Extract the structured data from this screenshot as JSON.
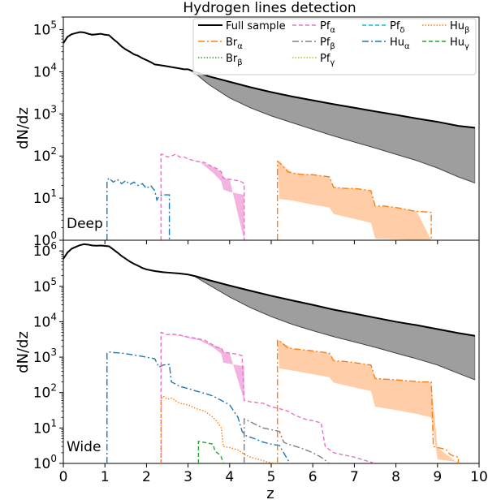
{
  "title": "Hydrogen lines detection",
  "xlabel": "z",
  "ylabel": "dN/dz",
  "x_ticks": [
    0,
    1,
    2,
    3,
    4,
    5,
    6,
    7,
    8,
    9,
    10
  ],
  "legend": [
    {
      "key": "full",
      "label": "Full sample",
      "sub": "",
      "color": "#000000",
      "dash": "",
      "width": 2
    },
    {
      "key": "bra",
      "label": "Br",
      "sub": "α",
      "color": "#ff7f0e",
      "dash": "8,3,2,3",
      "width": 1.4
    },
    {
      "key": "brb",
      "label": "Br",
      "sub": "β",
      "color": "#2ca02c",
      "dash": "1.5,2",
      "width": 1.4
    },
    {
      "key": "pfa",
      "label": "Pf",
      "sub": "α",
      "color": "#e377c2",
      "dash": "5,3",
      "width": 1.4
    },
    {
      "key": "pfb",
      "label": "Pf",
      "sub": "β",
      "color": "#7f7f7f",
      "dash": "8,3,2,3",
      "width": 1.4
    },
    {
      "key": "pfg",
      "label": "Pf",
      "sub": "γ",
      "color": "#bcbd22",
      "dash": "1.5,2",
      "width": 1.4
    },
    {
      "key": "pfd",
      "label": "Pf",
      "sub": "δ",
      "color": "#17becf",
      "dash": "5,3",
      "width": 1.4
    },
    {
      "key": "hua",
      "label": "Hu",
      "sub": "α",
      "color": "#1f77b4",
      "dash": "8,3,2,3",
      "width": 1.4
    },
    {
      "key": "hub",
      "label": "Hu",
      "sub": "β",
      "color": "#ff7f0e",
      "dash": "1.5,2",
      "width": 1.4
    },
    {
      "key": "hug",
      "label": "Hu",
      "sub": "γ",
      "color": "#2ca02c",
      "dash": "5,3",
      "width": 1.4
    }
  ],
  "chart_data": [
    {
      "type": "line",
      "panel_label": "Deep",
      "yscale": "log",
      "ylim": [
        1,
        200000
      ],
      "xlim": [
        0,
        10
      ],
      "y_ticks": [
        {
          "value": 1,
          "exp": "0"
        },
        {
          "value": 10,
          "exp": "1"
        },
        {
          "value": 100,
          "exp": "2"
        },
        {
          "value": 1000,
          "exp": "3"
        },
        {
          "value": 10000,
          "exp": "4"
        },
        {
          "value": 100000,
          "exp": "5"
        }
      ],
      "series": [
        {
          "key": "full",
          "x": [
            0,
            0.1,
            0.2,
            0.3,
            0.4,
            0.5,
            0.6,
            0.7,
            0.8,
            0.9,
            1.0,
            1.1,
            1.2,
            1.3,
            1.4,
            1.5,
            1.6,
            1.7,
            1.8,
            1.9,
            2.0,
            2.1,
            2.2,
            2.3,
            2.4,
            2.5,
            2.6,
            2.7,
            2.8,
            2.9,
            3.0,
            3.1,
            3.5,
            4.0,
            4.5,
            5.0,
            5.5,
            6.0,
            6.5,
            7.0,
            7.5,
            8.0,
            8.5,
            9.0,
            9.5,
            9.9
          ],
          "y": [
            48000,
            68000,
            78000,
            83000,
            88000,
            86000,
            80000,
            76000,
            78000,
            80000,
            76000,
            74000,
            60000,
            50000,
            40000,
            34000,
            30000,
            26000,
            24000,
            21000,
            19000,
            17000,
            15000,
            14500,
            14000,
            13500,
            13000,
            12500,
            12000,
            11500,
            11500,
            10500,
            7800,
            5800,
            4300,
            3300,
            2600,
            2100,
            1700,
            1400,
            1150,
            950,
            780,
            650,
            520,
            470
          ]
        },
        {
          "key": "hua",
          "x": [
            1.05,
            1.05,
            1.1,
            1.2,
            1.3,
            1.4,
            1.5,
            1.6,
            1.7,
            1.8,
            1.9,
            2.0,
            2.1,
            2.2,
            2.25,
            2.3,
            2.4,
            2.5,
            2.55,
            2.55
          ],
          "y": [
            1,
            26,
            30,
            24,
            28,
            22,
            26,
            21,
            24,
            20,
            22,
            17,
            20,
            15,
            9,
            11,
            12,
            12,
            12,
            1
          ]
        },
        {
          "key": "pfa",
          "x": [
            2.35,
            2.35,
            2.4,
            2.5,
            2.6,
            2.7,
            2.8,
            2.9,
            3.0,
            3.2,
            3.4,
            3.6,
            3.7,
            3.8,
            3.85,
            4.0,
            4.2,
            4.3,
            4.35,
            4.35
          ],
          "y": [
            1,
            110,
            108,
            95,
            100,
            110,
            95,
            95,
            85,
            75,
            70,
            55,
            50,
            42,
            30,
            28,
            26,
            24,
            22,
            1
          ]
        },
        {
          "key": "bra",
          "x": [
            5.15,
            5.15,
            5.2,
            5.4,
            5.6,
            5.8,
            6.0,
            6.2,
            6.4,
            6.5,
            6.8,
            7.0,
            7.2,
            7.4,
            7.5,
            7.7,
            8.0,
            8.2,
            8.4,
            8.6,
            8.85,
            8.85
          ],
          "y": [
            1,
            75,
            70,
            42,
            38,
            36,
            36,
            34,
            32,
            18,
            17,
            17,
            16,
            15,
            6.5,
            6.5,
            6,
            5.5,
            5,
            4.8,
            4.6,
            1
          ]
        }
      ],
      "bands": [
        {
          "key": "full",
          "color": "#9e9e9e",
          "x": [
            3.1,
            3.5,
            4.0,
            4.5,
            5.0,
            5.5,
            6.0,
            6.5,
            7.0,
            7.5,
            8.0,
            8.5,
            9.0,
            9.5,
            9.9
          ],
          "lower": [
            10500,
            5000,
            2400,
            1400,
            900,
            620,
            430,
            300,
            215,
            155,
            110,
            78,
            52,
            32,
            23
          ]
        },
        {
          "key": "pfa",
          "color": "#f0a6dc",
          "x": [
            2.35,
            2.5,
            2.8,
            3.0,
            3.3,
            3.6,
            3.8,
            3.85,
            4.0,
            4.35
          ],
          "lower": [
            110,
            95,
            95,
            85,
            70,
            40,
            25,
            16,
            14,
            12
          ]
        },
        {
          "key": "bra",
          "color": "#ffc699",
          "x": [
            5.15,
            5.2,
            5.5,
            6.0,
            6.2,
            6.4,
            6.5,
            7.0,
            7.4,
            7.5,
            8.0,
            8.5,
            8.85
          ],
          "lower": [
            75,
            9.5,
            8.8,
            7,
            6.5,
            6,
            4.2,
            3.2,
            2.6,
            1.1,
            1.05,
            1,
            1
          ]
        }
      ]
    },
    {
      "type": "line",
      "panel_label": "Wide",
      "yscale": "log",
      "ylim": [
        1,
        2000000
      ],
      "xlim": [
        0,
        10
      ],
      "y_ticks": [
        {
          "value": 1,
          "exp": "0"
        },
        {
          "value": 10,
          "exp": "1"
        },
        {
          "value": 100,
          "exp": "2"
        },
        {
          "value": 1000,
          "exp": "3"
        },
        {
          "value": 10000,
          "exp": "4"
        },
        {
          "value": 100000,
          "exp": "5"
        },
        {
          "value": 1000000,
          "exp": "6"
        }
      ],
      "series": [
        {
          "key": "full",
          "x": [
            0,
            0.1,
            0.2,
            0.3,
            0.4,
            0.5,
            0.6,
            0.7,
            0.8,
            0.9,
            1.0,
            1.1,
            1.2,
            1.3,
            1.4,
            1.5,
            1.6,
            1.7,
            1.8,
            1.9,
            2.0,
            2.2,
            2.4,
            2.6,
            2.8,
            3.0,
            3.2,
            3.5,
            4.0,
            4.5,
            5.0,
            5.5,
            6.0,
            6.5,
            7.0,
            7.5,
            8.0,
            8.5,
            9.0,
            9.5,
            9.9
          ],
          "y": [
            600000,
            900000,
            1150000,
            1300000,
            1450000,
            1550000,
            1500000,
            1420000,
            1400000,
            1420000,
            1380000,
            1350000,
            1100000,
            900000,
            720000,
            600000,
            500000,
            430000,
            380000,
            330000,
            300000,
            270000,
            250000,
            240000,
            230000,
            215000,
            190000,
            150000,
            105000,
            75000,
            54000,
            40000,
            30000,
            22000,
            17000,
            13000,
            10000,
            8000,
            6200,
            4800,
            4000
          ]
        },
        {
          "key": "hua",
          "x": [
            1.05,
            1.05,
            1.1,
            1.2,
            1.4,
            1.6,
            1.8,
            2.0,
            2.2,
            2.3,
            2.4,
            2.5,
            2.55,
            2.6,
            2.8,
            3.0,
            3.2,
            3.4,
            3.6,
            3.8,
            4.0,
            4.2,
            4.3,
            4.4,
            4.6,
            4.8,
            5.0,
            5.2,
            5.3,
            5.45
          ],
          "y": [
            1,
            1300,
            1400,
            1350,
            1300,
            1200,
            1100,
            1000,
            900,
            520,
            600,
            620,
            620,
            200,
            150,
            130,
            110,
            95,
            80,
            60,
            45,
            20,
            8,
            6,
            5,
            4,
            3.5,
            3.2,
            2,
            1
          ]
        },
        {
          "key": "pfa",
          "x": [
            2.35,
            2.35,
            2.4,
            2.5,
            2.6,
            2.8,
            3.0,
            3.2,
            3.4,
            3.6,
            3.7,
            3.8,
            3.85,
            4.0,
            4.2,
            4.3,
            4.35,
            4.5,
            4.8,
            5.0,
            5.2,
            5.4,
            5.6,
            5.8,
            6.0,
            6.2,
            6.3,
            6.5,
            7.0,
            7.5
          ],
          "y": [
            1,
            5000,
            4800,
            4300,
            4500,
            4200,
            3700,
            3400,
            3000,
            2200,
            1900,
            1800,
            1400,
            1300,
            1200,
            1100,
            60,
            55,
            50,
            40,
            35,
            30,
            22,
            18,
            16,
            14,
            3,
            2,
            1.5,
            1
          ]
        },
        {
          "key": "hub",
          "x": [
            2.35,
            2.35,
            2.4,
            2.5,
            2.6,
            2.8,
            3.0,
            3.2,
            3.4,
            3.6,
            3.7,
            3.8,
            3.85,
            4.0,
            4.2,
            4.3,
            4.35,
            4.5,
            4.7,
            4.9,
            5.1
          ],
          "y": [
            1,
            60,
            80,
            65,
            70,
            50,
            45,
            35,
            30,
            20,
            15,
            10,
            3,
            2.8,
            2.4,
            2,
            1.8,
            1.5,
            1.3,
            1.1,
            1
          ]
        },
        {
          "key": "pfb",
          "x": [
            4.35,
            4.35,
            4.4,
            4.5,
            4.6,
            4.8,
            5.0,
            5.2,
            5.3,
            5.4,
            5.6,
            5.8,
            6.0,
            6.2,
            6.4
          ],
          "y": [
            1,
            18,
            17,
            15,
            13,
            10,
            9,
            8,
            4,
            3.5,
            3,
            2.5,
            2,
            1.5,
            1
          ]
        },
        {
          "key": "hug",
          "x": [
            3.25,
            3.25,
            3.3,
            3.4,
            3.5,
            3.6,
            3.65,
            3.7,
            3.75,
            3.8,
            3.85
          ],
          "y": [
            1,
            4.2,
            4.1,
            3.9,
            3.7,
            3.5,
            2.2,
            2.0,
            1.8,
            1.5,
            1
          ]
        },
        {
          "key": "bra",
          "x": [
            5.15,
            5.15,
            5.2,
            5.4,
            5.6,
            5.8,
            6.0,
            6.2,
            6.4,
            6.5,
            6.8,
            7.0,
            7.2,
            7.4,
            7.5,
            7.7,
            8.0,
            8.2,
            8.4,
            8.6,
            8.85,
            8.9,
            9.0,
            9.2,
            9.3,
            9.4,
            9.5,
            9.5
          ],
          "y": [
            1,
            3000,
            2900,
            1800,
            1700,
            1600,
            1500,
            1400,
            1300,
            800,
            750,
            700,
            650,
            600,
            250,
            240,
            230,
            220,
            210,
            200,
            200,
            3,
            2.8,
            2.5,
            1.8,
            1.6,
            1.5,
            1
          ]
        }
      ],
      "bands": [
        {
          "key": "full",
          "color": "#9e9e9e",
          "x": [
            3.1,
            3.5,
            4.0,
            4.5,
            5.0,
            5.5,
            6.0,
            6.5,
            7.0,
            7.5,
            8.0,
            8.5,
            9.0,
            9.5,
            9.9
          ],
          "lower": [
            210000,
            110000,
            50000,
            25000,
            14000,
            8500,
            5600,
            3800,
            2700,
            1900,
            1300,
            900,
            600,
            350,
            230
          ]
        },
        {
          "key": "pfa",
          "color": "#f0a6dc",
          "x": [
            2.35,
            2.5,
            2.8,
            3.0,
            3.3,
            3.6,
            3.8,
            3.85,
            4.0,
            4.35
          ],
          "lower": [
            5000,
            4300,
            4000,
            3500,
            2900,
            1900,
            1250,
            700,
            650,
            550
          ]
        },
        {
          "key": "bra",
          "color": "#ffc699",
          "x": [
            5.15,
            5.2,
            5.5,
            6.0,
            6.2,
            6.4,
            6.5,
            7.0,
            7.4,
            7.5,
            8.0,
            8.5,
            8.85,
            9.0,
            9.5
          ],
          "lower": [
            3000,
            480,
            420,
            330,
            300,
            270,
            190,
            140,
            110,
            40,
            32,
            25,
            20,
            1.3,
            1.1
          ]
        }
      ]
    }
  ]
}
